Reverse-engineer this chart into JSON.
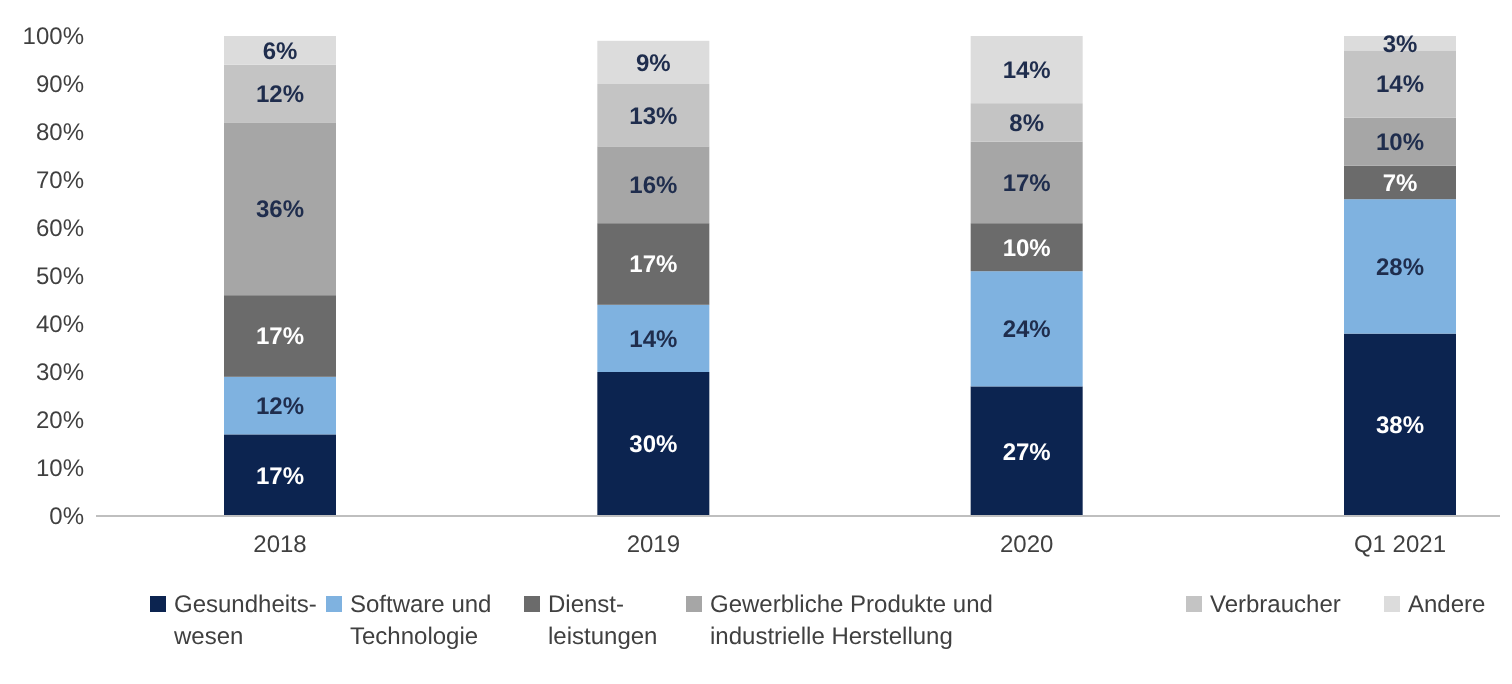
{
  "chart_data": {
    "type": "bar",
    "stacked": true,
    "categories": [
      "2018",
      "2019",
      "2020",
      "Q1 2021"
    ],
    "ylim": [
      0,
      100
    ],
    "yticks": [
      {
        "value": 0,
        "label": "0%"
      },
      {
        "value": 10,
        "label": "10%"
      },
      {
        "value": 20,
        "label": "20%"
      },
      {
        "value": 30,
        "label": "30%"
      },
      {
        "value": 40,
        "label": "40%"
      },
      {
        "value": 50,
        "label": "50%"
      },
      {
        "value": 60,
        "label": "60%"
      },
      {
        "value": 70,
        "label": "70%"
      },
      {
        "value": 80,
        "label": "80%"
      },
      {
        "value": 90,
        "label": "90%"
      },
      {
        "value": 100,
        "label": "100%"
      }
    ],
    "legend": "bottom",
    "series": [
      {
        "name": "Gesundheits-\nwesen",
        "color": "#0c2450",
        "values": [
          17,
          30,
          27,
          38
        ],
        "value_labels": [
          "17%",
          "30%",
          "27%",
          "38%"
        ]
      },
      {
        "name": "Software und\nTechnologie",
        "color": "#7fb2e0",
        "values": [
          12,
          14,
          24,
          28
        ],
        "value_labels": [
          "12%",
          "14%",
          "24%",
          "28%"
        ]
      },
      {
        "name": "Dienst-\nleistungen",
        "color": "#6b6b6b",
        "values": [
          17,
          17,
          10,
          7
        ],
        "value_labels": [
          "17%",
          "17%",
          "10%",
          "7%"
        ]
      },
      {
        "name": "Gewerbliche Produkte und\nindustrielle Herstellung",
        "color": "#a6a6a6",
        "values": [
          36,
          16,
          17,
          10
        ],
        "value_labels": [
          "36%",
          "16%",
          "17%",
          "10%"
        ]
      },
      {
        "name": "Verbraucher",
        "color": "#c4c4c4",
        "values": [
          12,
          13,
          8,
          14
        ],
        "value_labels": [
          "12%",
          "13%",
          "8%",
          "14%"
        ]
      },
      {
        "name": "Andere",
        "color": "#dcdcdc",
        "values": [
          6,
          9,
          14,
          3
        ],
        "value_labels": [
          "6%",
          "9%",
          "14%",
          "3%"
        ]
      }
    ]
  }
}
